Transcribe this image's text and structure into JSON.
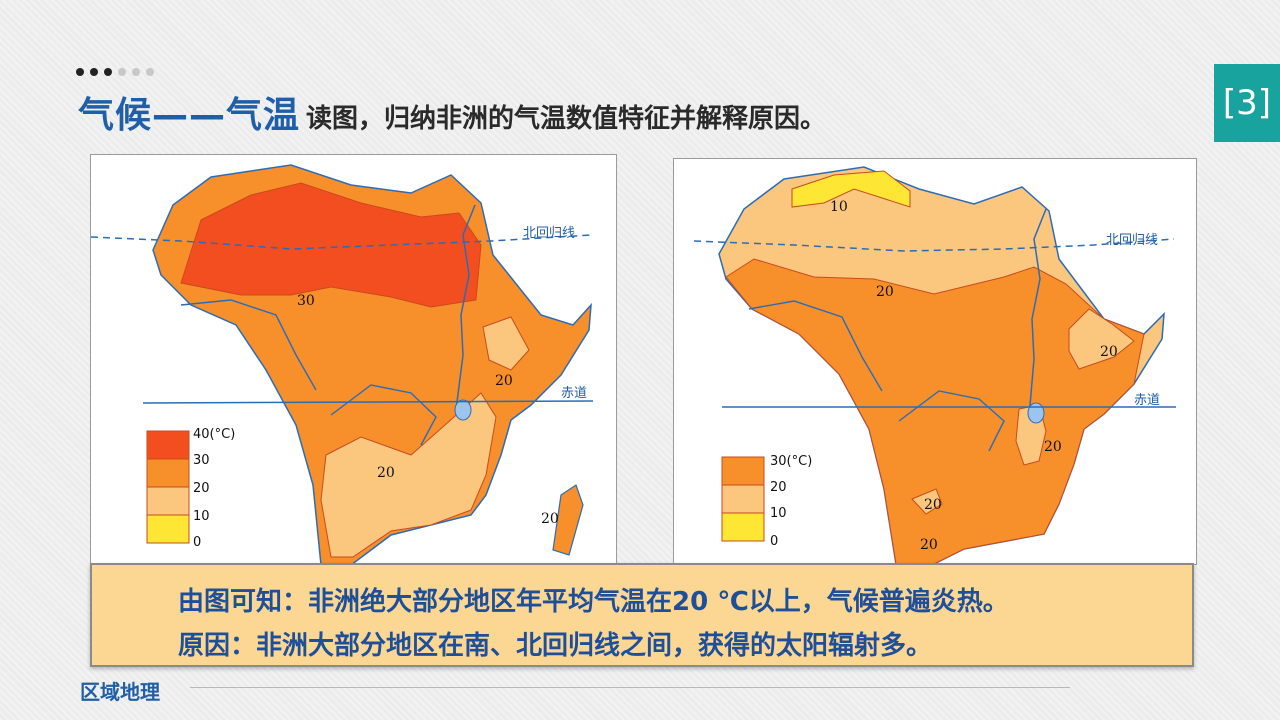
{
  "progress_dots": {
    "active": 3,
    "total": 6
  },
  "title": {
    "main": "气候——气温",
    "sub": "读图，归纳非洲的气温数值特征并解释原因。"
  },
  "slide_number": "[3]",
  "colors": {
    "band_30_40": "#f24e1f",
    "band_20_30": "#f7902a",
    "band_10_20": "#fbc77f",
    "band_0_10": "#fde734",
    "water": "#1f5fa8",
    "title": "#1f5fa8",
    "accent": "#18a39e"
  },
  "maps": {
    "january": {
      "tropic_label": "北回归线",
      "equator_label": "赤道",
      "isotherm_labels": [
        "30",
        "20",
        "20",
        "20"
      ],
      "legend": {
        "labels": [
          "40(°C)",
          "30",
          "20",
          "10",
          "0"
        ]
      }
    },
    "july": {
      "tropic_label": "北回归线",
      "equator_label": "赤道",
      "isotherm_labels": [
        "10",
        "20",
        "20",
        "20",
        "20",
        "20"
      ],
      "legend": {
        "labels": [
          "30(°C)",
          "20",
          "10",
          "0"
        ]
      }
    }
  },
  "conclusion": {
    "line1": "由图可知：非洲绝大部分地区年平均气温在20 ℃以上，气候普遍炎热。",
    "line2": "原因：非洲大部分地区在南、北回归线之间，获得的太阳辐射多。"
  },
  "footer": {
    "label": "区域地理"
  }
}
